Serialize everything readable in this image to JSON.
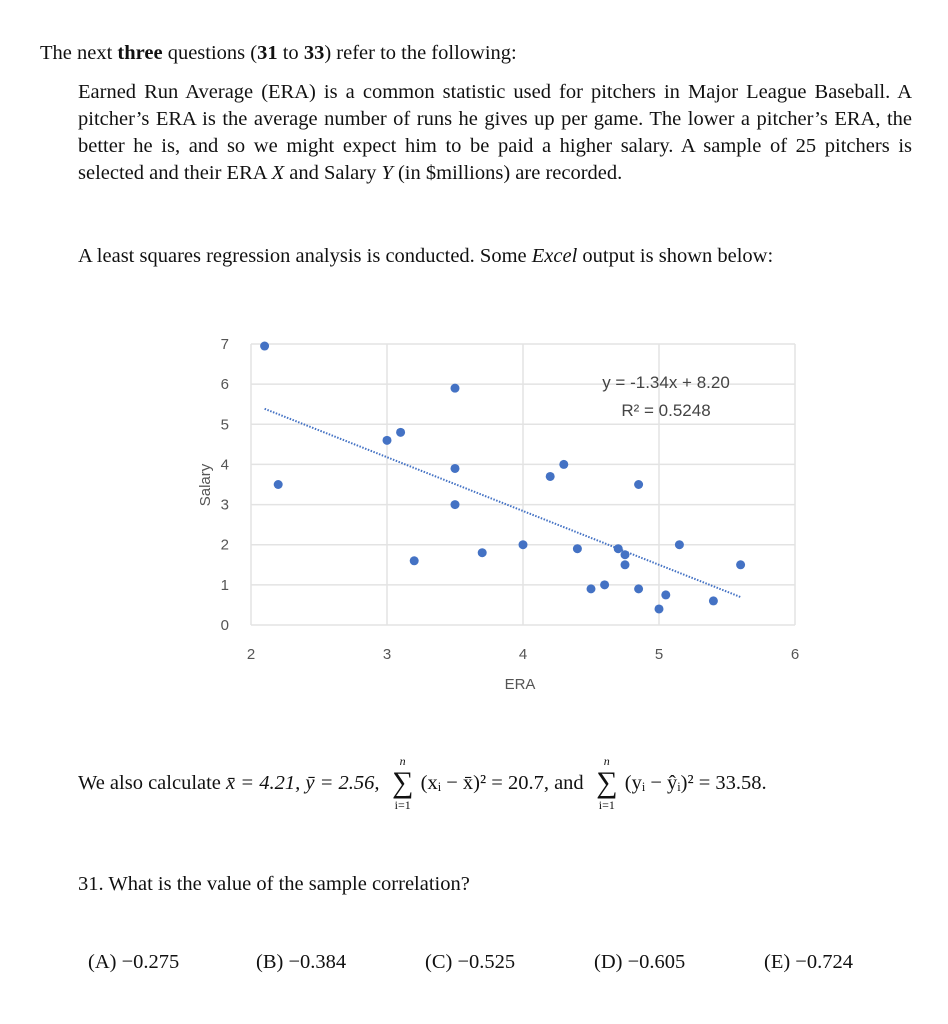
{
  "intro": {
    "before": "The next ",
    "bold1": "three",
    "middle": " questions (",
    "bold2": "31",
    "to": " to ",
    "bold3": "33",
    "after": ") refer to the following:"
  },
  "paragraph": {
    "part1": "Earned Run Average (ERA) is a common statistic used for pitchers in Major League Baseball. A pitcher’s ERA is the average number of runs he gives up per game. The lower a pitcher’s ERA, the better he is, and so we might expect him to be paid a higher salary. A sample of 25 pitchers is selected and their ERA ",
    "var_x": "X",
    "part2": " and Salary ",
    "var_y": "Y",
    "part3": " (in $millions) are recorded."
  },
  "paragraph2": {
    "before": "A least squares regression analysis is conducted. Some ",
    "excel": "Excel",
    "after": " output is shown below:"
  },
  "chart_data": {
    "type": "scatter",
    "xlabel": "ERA",
    "ylabel": "Salary",
    "xlim": [
      2,
      6
    ],
    "ylim": [
      0,
      7
    ],
    "xticks": [
      "2",
      "3",
      "4",
      "5",
      "6"
    ],
    "yticks": [
      "0",
      "1",
      "2",
      "3",
      "4",
      "5",
      "6",
      "7"
    ],
    "grid": true,
    "point_color": "#4472C4",
    "points": [
      [
        2.1,
        6.95
      ],
      [
        2.2,
        3.5
      ],
      [
        3.0,
        4.6
      ],
      [
        3.1,
        4.8
      ],
      [
        3.2,
        1.6
      ],
      [
        3.5,
        5.9
      ],
      [
        3.5,
        3.9
      ],
      [
        3.5,
        3.0
      ],
      [
        3.7,
        1.8
      ],
      [
        4.0,
        2.0
      ],
      [
        4.2,
        3.7
      ],
      [
        4.3,
        4.0
      ],
      [
        4.4,
        1.9
      ],
      [
        4.5,
        0.9
      ],
      [
        4.6,
        1.0
      ],
      [
        4.7,
        1.9
      ],
      [
        4.75,
        1.75
      ],
      [
        4.75,
        1.5
      ],
      [
        4.85,
        3.5
      ],
      [
        4.85,
        0.9
      ],
      [
        5.0,
        0.4
      ],
      [
        5.05,
        0.75
      ],
      [
        5.15,
        2.0
      ],
      [
        5.4,
        0.6
      ],
      [
        5.6,
        1.5
      ]
    ],
    "trendline": {
      "slope": -1.34,
      "intercept": 8.2,
      "x_range": [
        2.1,
        5.6
      ],
      "style": "dotted"
    },
    "equation": "y = -1.34x + 8.20",
    "r_squared": "R² = 0.5248"
  },
  "calc": {
    "lead": "We also calculate ",
    "means": "x̄ = 4.21, ȳ = 2.56, ",
    "sum_upper": "n",
    "sum_lower": "i=1",
    "sigma": "∑",
    "term1": "(xᵢ − x̄)² = 20.7, and ",
    "term2": "(yᵢ − ŷᵢ)² = 33.58."
  },
  "question": {
    "text": "31. What is the value of the sample correlation?",
    "options": [
      "(A) −0.275",
      "(B) −0.384",
      "(C) −0.525",
      "(D) −0.605",
      "(E) −0.724"
    ]
  }
}
